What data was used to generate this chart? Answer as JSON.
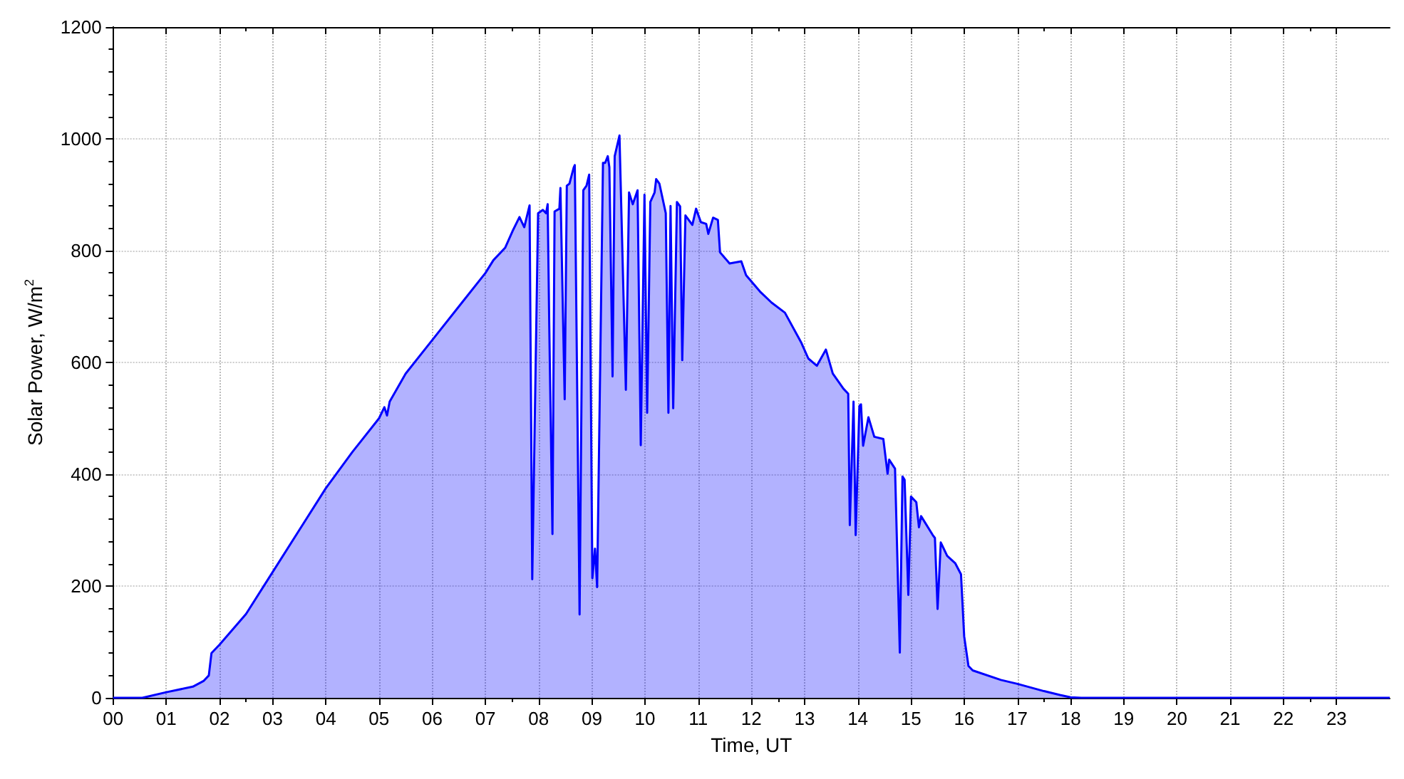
{
  "chart_data": {
    "type": "area",
    "xlabel": "Time, UT",
    "ylabel": "Solar Power, W/m$^{2}$",
    "xlim": [
      0,
      24
    ],
    "xticks": [
      {
        "value": 0,
        "label": "00"
      },
      {
        "value": 1,
        "label": "01"
      },
      {
        "value": 2,
        "label": "02"
      },
      {
        "value": 3,
        "label": "03"
      },
      {
        "value": 4,
        "label": "04"
      },
      {
        "value": 5,
        "label": "05"
      },
      {
        "value": 6,
        "label": "06"
      },
      {
        "value": 7,
        "label": "07"
      },
      {
        "value": 8,
        "label": "08"
      },
      {
        "value": 9,
        "label": "09"
      },
      {
        "value": 10,
        "label": "10"
      },
      {
        "value": 11,
        "label": "11"
      },
      {
        "value": 12,
        "label": "12"
      },
      {
        "value": 13,
        "label": "13"
      },
      {
        "value": 14,
        "label": "14"
      },
      {
        "value": 15,
        "label": "15"
      },
      {
        "value": 16,
        "label": "16"
      },
      {
        "value": 17,
        "label": "17"
      },
      {
        "value": 18,
        "label": "18"
      },
      {
        "value": 19,
        "label": "19"
      },
      {
        "value": 20,
        "label": "20"
      },
      {
        "value": 21,
        "label": "21"
      },
      {
        "value": 22,
        "label": "22"
      },
      {
        "value": 23,
        "label": "23"
      }
    ],
    "ylim": [
      0,
      1200
    ],
    "yticks": [
      0,
      200,
      400,
      600,
      800,
      1000,
      1200
    ],
    "grid": true,
    "marker": "none",
    "line_style": "solid",
    "series": [
      {
        "color": "#0000ff",
        "x": [
          0,
          0.55,
          1.0,
          1.5,
          1.7,
          1.8,
          1.85,
          2.0,
          2.5,
          3.0,
          3.5,
          4.0,
          4.5,
          5.0,
          5.1,
          5.15,
          5.2,
          5.5,
          6.0,
          6.5,
          7.0,
          7.15,
          7.37,
          7.51,
          7.64,
          7.73,
          7.83,
          7.88,
          7.99,
          8.08,
          8.14,
          8.17,
          8.2,
          8.26,
          8.3,
          8.39,
          8.41,
          8.49,
          8.53,
          8.58,
          8.66,
          8.68,
          8.77,
          8.84,
          8.9,
          8.95,
          9.01,
          9.06,
          9.1,
          9.21,
          9.25,
          9.3,
          9.33,
          9.39,
          9.43,
          9.52,
          9.64,
          9.7,
          9.77,
          9.86,
          9.92,
          9.99,
          10.04,
          10.1,
          10.18,
          10.21,
          10.27,
          10.39,
          10.44,
          10.48,
          10.53,
          10.6,
          10.66,
          10.7,
          10.76,
          10.89,
          10.96,
          11.05,
          11.15,
          11.19,
          11.28,
          11.37,
          11.41,
          11.59,
          11.81,
          11.9,
          12.16,
          12.38,
          12.63,
          12.94,
          13.07,
          13.23,
          13.4,
          13.53,
          13.73,
          13.82,
          13.85,
          13.92,
          13.96,
          14.03,
          14.06,
          14.1,
          14.2,
          14.31,
          14.48,
          14.56,
          14.59,
          14.7,
          14.79,
          14.84,
          14.88,
          14.95,
          15.0,
          15.1,
          15.15,
          15.19,
          15.41,
          15.45,
          15.5,
          15.56,
          15.68,
          15.83,
          15.94,
          16.0,
          16.08,
          16.16,
          16.69,
          17.0,
          17.5,
          17.8,
          18.0,
          18.2,
          24
        ],
        "values": [
          0,
          0,
          10,
          20,
          30,
          40,
          80,
          95,
          150,
          225,
          300,
          375,
          440,
          500,
          520,
          505,
          530,
          580,
          640,
          700,
          760,
          783,
          805,
          835,
          860,
          842,
          881,
          212,
          867,
          873,
          867,
          883,
          666,
          293,
          870,
          875,
          912,
          534,
          916,
          920,
          949,
          953,
          149,
          908,
          916,
          936,
          214,
          267,
          198,
          957,
          957,
          969,
          949,
          575,
          969,
          1006,
          551,
          904,
          883,
          908,
          452,
          900,
          510,
          887,
          904,
          928,
          920,
          867,
          510,
          880,
          518,
          887,
          879,
          604,
          863,
          846,
          875,
          851,
          848,
          830,
          859,
          855,
          797,
          777,
          781,
          756,
          727,
          707,
          689,
          635,
          607,
          594,
          623,
          580,
          553,
          544,
          309,
          530,
          291,
          522,
          525,
          451,
          502,
          467,
          463,
          401,
          426,
          410,
          81,
          396,
          390,
          184,
          360,
          350,
          305,
          325,
          291,
          286,
          159,
          278,
          254,
          241,
          221,
          110,
          57,
          49,
          32,
          25,
          12,
          5,
          1,
          0,
          0
        ]
      }
    ]
  }
}
